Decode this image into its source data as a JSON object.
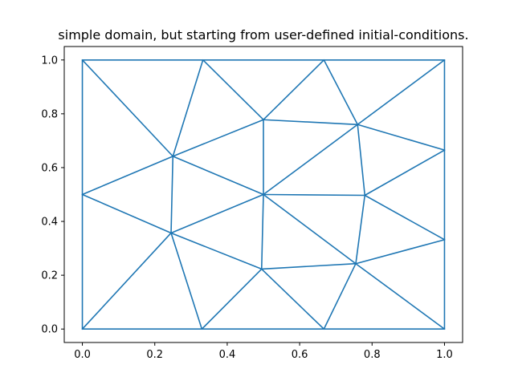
{
  "chart_data": {
    "type": "line",
    "title": "simple domain, but starting from user-defined initial-conditions.",
    "xlabel": "",
    "ylabel": "",
    "xlim": [
      -0.05,
      1.05
    ],
    "ylim": [
      -0.05,
      1.05
    ],
    "xticks": [
      0.0,
      0.2,
      0.4,
      0.6,
      0.8,
      1.0
    ],
    "yticks": [
      0.0,
      0.2,
      0.4,
      0.6,
      0.8,
      1.0
    ],
    "xtick_labels": [
      "0.0",
      "0.2",
      "0.4",
      "0.6",
      "0.8",
      "1.0"
    ],
    "ytick_labels": [
      "0.0",
      "0.2",
      "0.4",
      "0.6",
      "0.8",
      "1.0"
    ],
    "grid": false,
    "color": "#1f77b4",
    "nodes": [
      {
        "x": 0.0,
        "y": 0.0
      },
      {
        "x": 0.333,
        "y": 1.0
      },
      {
        "x": 0.667,
        "y": 1.0
      },
      {
        "x": 0.0,
        "y": 1.0
      },
      {
        "x": 1.0,
        "y": 1.0
      },
      {
        "x": 0.0,
        "y": 0.5
      },
      {
        "x": 0.25,
        "y": 0.642
      },
      {
        "x": 0.5,
        "y": 0.778
      },
      {
        "x": 0.76,
        "y": 0.76
      },
      {
        "x": 1.0,
        "y": 0.665
      },
      {
        "x": 0.5,
        "y": 0.5
      },
      {
        "x": 0.78,
        "y": 0.497
      },
      {
        "x": 0.245,
        "y": 0.357
      },
      {
        "x": 1.0,
        "y": 0.332
      },
      {
        "x": 0.495,
        "y": 0.223
      },
      {
        "x": 0.755,
        "y": 0.243
      },
      {
        "x": 0.33,
        "y": 0.0
      },
      {
        "x": 0.667,
        "y": 0.0
      },
      {
        "x": 1.0,
        "y": 0.0
      }
    ],
    "edges": [
      [
        0,
        5
      ],
      [
        5,
        3
      ],
      [
        3,
        1
      ],
      [
        1,
        2
      ],
      [
        2,
        4
      ],
      [
        4,
        9
      ],
      [
        9,
        13
      ],
      [
        13,
        18
      ],
      [
        18,
        17
      ],
      [
        17,
        16
      ],
      [
        16,
        0
      ],
      [
        3,
        6
      ],
      [
        5,
        6
      ],
      [
        1,
        6
      ],
      [
        1,
        7
      ],
      [
        6,
        7
      ],
      [
        7,
        2
      ],
      [
        2,
        8
      ],
      [
        7,
        8
      ],
      [
        8,
        4
      ],
      [
        8,
        9
      ],
      [
        6,
        10
      ],
      [
        7,
        10
      ],
      [
        10,
        8
      ],
      [
        8,
        11
      ],
      [
        10,
        11
      ],
      [
        11,
        9
      ],
      [
        11,
        13
      ],
      [
        5,
        12
      ],
      [
        6,
        12
      ],
      [
        12,
        10
      ],
      [
        12,
        0
      ],
      [
        12,
        16
      ],
      [
        12,
        14
      ],
      [
        10,
        14
      ],
      [
        14,
        16
      ],
      [
        14,
        17
      ],
      [
        14,
        15
      ],
      [
        10,
        15
      ],
      [
        11,
        15
      ],
      [
        15,
        13
      ],
      [
        15,
        17
      ],
      [
        15,
        18
      ]
    ]
  }
}
